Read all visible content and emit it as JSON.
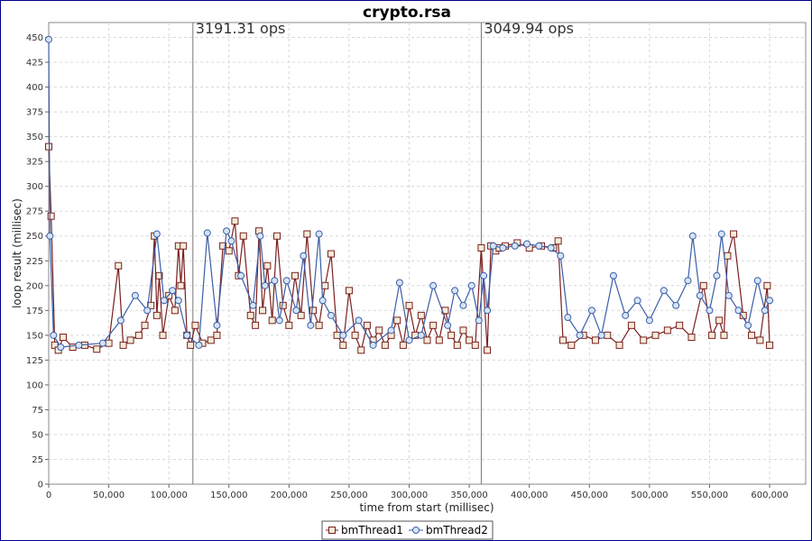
{
  "chart_data": {
    "type": "line",
    "title": "crypto.rsa",
    "xlabel": "time from start (millisec)",
    "ylabel": "loop result (millisec)",
    "xlim": [
      0,
      630000
    ],
    "ylim": [
      0,
      465
    ],
    "x_ticks": [
      0,
      50000,
      100000,
      150000,
      200000,
      250000,
      300000,
      350000,
      400000,
      450000,
      500000,
      550000,
      600000
    ],
    "x_tick_labels": [
      "0",
      "50,000",
      "100,000",
      "150,000",
      "200,000",
      "250,000",
      "300,000",
      "350,000",
      "400,000",
      "450,000",
      "500,000",
      "550,000",
      "600,000"
    ],
    "y_ticks": [
      0,
      25,
      50,
      75,
      100,
      125,
      150,
      175,
      200,
      225,
      250,
      275,
      300,
      325,
      350,
      375,
      400,
      425,
      450
    ],
    "y_tick_labels": [
      "0",
      "25",
      "50",
      "75",
      "100",
      "125",
      "150",
      "175",
      "200",
      "225",
      "250",
      "275",
      "300",
      "325",
      "350",
      "375",
      "400",
      "425",
      "450"
    ],
    "grid": true,
    "legend_position": "bottom-center",
    "markers": [
      {
        "x": 120000,
        "label": "3191.31 ops"
      },
      {
        "x": 360000,
        "label": "3049.94 ops"
      }
    ],
    "series": [
      {
        "name": "bmThread1",
        "color": "#7a1f1f",
        "marker": "square",
        "x": [
          0,
          2000,
          5000,
          8000,
          12000,
          20000,
          30000,
          40000,
          50000,
          58000,
          62000,
          68000,
          75000,
          80000,
          85000,
          88000,
          90000,
          92000,
          95000,
          100000,
          105000,
          108000,
          110000,
          112000,
          115000,
          118000,
          122000,
          128000,
          135000,
          140000,
          145000,
          150000,
          155000,
          158000,
          162000,
          168000,
          172000,
          175000,
          178000,
          182000,
          186000,
          190000,
          195000,
          200000,
          205000,
          210000,
          215000,
          220000,
          225000,
          230000,
          235000,
          240000,
          245000,
          250000,
          255000,
          260000,
          265000,
          270000,
          275000,
          280000,
          285000,
          290000,
          295000,
          300000,
          305000,
          310000,
          315000,
          320000,
          325000,
          330000,
          335000,
          340000,
          345000,
          350000,
          355000,
          360000,
          365000,
          368000,
          372000,
          375000,
          380000,
          390000,
          400000,
          410000,
          420000,
          424000,
          428000,
          435000,
          445000,
          455000,
          465000,
          475000,
          485000,
          495000,
          505000,
          515000,
          525000,
          535000,
          545000,
          552000,
          558000,
          562000,
          565000,
          570000,
          578000,
          585000,
          592000,
          598000,
          600000
        ],
        "values": [
          340,
          270,
          140,
          135,
          148,
          138,
          140,
          136,
          142,
          220,
          140,
          145,
          150,
          160,
          180,
          250,
          170,
          210,
          150,
          190,
          175,
          240,
          200,
          240,
          150,
          140,
          160,
          142,
          145,
          150,
          240,
          235,
          265,
          210,
          250,
          170,
          160,
          255,
          175,
          220,
          165,
          250,
          180,
          160,
          210,
          170,
          252,
          175,
          160,
          200,
          232,
          150,
          140,
          195,
          150,
          135,
          160,
          145,
          155,
          140,
          150,
          165,
          140,
          180,
          150,
          170,
          145,
          160,
          145,
          175,
          150,
          140,
          155,
          145,
          140,
          238,
          135,
          240,
          235,
          238,
          240,
          243,
          238,
          240,
          238,
          245,
          145,
          140,
          150,
          145,
          150,
          140,
          160,
          145,
          150,
          155,
          160,
          148,
          200,
          150,
          165,
          150,
          230,
          252,
          170,
          150,
          145,
          200,
          140
        ]
      },
      {
        "name": "bmThread2",
        "color": "#3b5ea8",
        "marker": "circle",
        "x": [
          0,
          1000,
          4000,
          10000,
          25000,
          45000,
          60000,
          72000,
          82000,
          90000,
          96000,
          103000,
          108000,
          115000,
          125000,
          132000,
          140000,
          148000,
          152000,
          160000,
          170000,
          176000,
          180000,
          188000,
          192000,
          198000,
          206000,
          212000,
          218000,
          225000,
          228000,
          235000,
          245000,
          258000,
          270000,
          285000,
          292000,
          300000,
          310000,
          320000,
          332000,
          338000,
          345000,
          352000,
          358000,
          362000,
          365000,
          370000,
          378000,
          388000,
          398000,
          408000,
          418000,
          426000,
          432000,
          442000,
          452000,
          460000,
          470000,
          480000,
          490000,
          500000,
          512000,
          522000,
          532000,
          536000,
          542000,
          550000,
          556000,
          560000,
          566000,
          574000,
          582000,
          590000,
          596000,
          600000
        ],
        "values": [
          448,
          250,
          150,
          138,
          140,
          142,
          165,
          190,
          175,
          252,
          185,
          195,
          185,
          150,
          140,
          253,
          160,
          255,
          245,
          210,
          180,
          250,
          200,
          205,
          165,
          205,
          175,
          230,
          160,
          252,
          185,
          170,
          150,
          165,
          140,
          155,
          203,
          145,
          150,
          200,
          160,
          195,
          180,
          200,
          165,
          210,
          175,
          240,
          238,
          240,
          242,
          240,
          238,
          230,
          168,
          150,
          175,
          150,
          210,
          170,
          185,
          165,
          195,
          180,
          205,
          250,
          190,
          175,
          210,
          252,
          190,
          175,
          160,
          205,
          175,
          185
        ]
      }
    ]
  }
}
